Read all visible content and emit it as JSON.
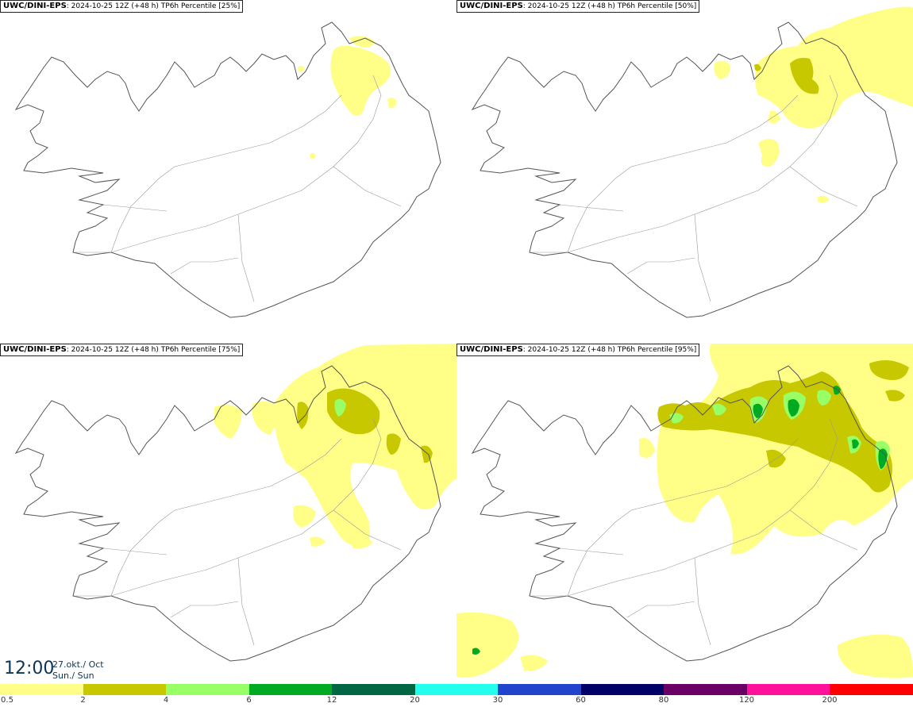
{
  "panels": [
    {
      "model": "UWC/DINI-EPS",
      "run": "2024-10-25 12Z (+48 h)",
      "field": "TP6h Percentile [25%]"
    },
    {
      "model": "UWC/DINI-EPS",
      "run": "2024-10-25 12Z (+48 h)",
      "field": "TP6h Percentile [50%]"
    },
    {
      "model": "UWC/DINI-EPS",
      "run": "2024-10-25 12Z (+48 h)",
      "field": "TP6h Percentile [75%]"
    },
    {
      "model": "UWC/DINI-EPS",
      "run": "2024-10-25 12Z (+48 h)",
      "field": "TP6h Percentile [95%]"
    }
  ],
  "time": {
    "clock": "12:00",
    "date_line": "27.okt./ Oct",
    "day_line": "Sun./ Sun"
  },
  "legend": {
    "labels": [
      "0.5",
      "2",
      "4",
      "6",
      "12",
      "20",
      "30",
      "60",
      "80",
      "120",
      "200"
    ],
    "colors": [
      "#ffff88",
      "#c8c800",
      "#99ff66",
      "#00aa22",
      "#006644",
      "#22ffee",
      "#2244cc",
      "#000066",
      "#6a0066",
      "#ff1199",
      "#ff0000"
    ]
  }
}
